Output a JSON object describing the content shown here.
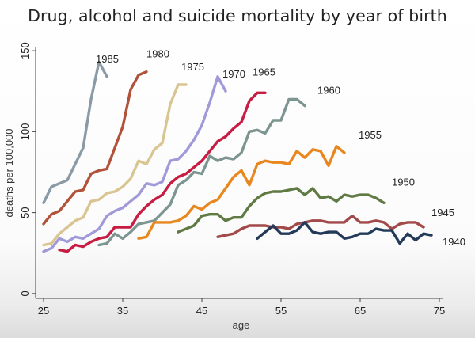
{
  "title": "Drug, alcohol and suicide mortality by year of birth",
  "chart_data": {
    "type": "line",
    "title": "Drug, alcohol and suicide mortality by year of birth",
    "xlabel": "age",
    "ylabel": "deaths per 100,000",
    "xlim": [
      24,
      75.5
    ],
    "ylim": [
      -3,
      152
    ],
    "xticks": [
      25,
      35,
      45,
      55,
      65,
      75
    ],
    "yticks": [
      0,
      50,
      100,
      150
    ],
    "grid": false,
    "legend": "none",
    "series": [
      {
        "name": "1985",
        "color": "#8a9ba6",
        "x": [
          25,
          26,
          27,
          28,
          29,
          30,
          31,
          32,
          33
        ],
        "y": [
          56,
          66,
          68,
          70,
          80,
          90,
          120,
          143,
          134
        ]
      },
      {
        "name": "1980",
        "color": "#b0533a",
        "x": [
          25,
          26,
          27,
          28,
          29,
          30,
          31,
          32,
          33,
          34,
          35,
          36,
          37,
          38
        ],
        "y": [
          43,
          49,
          51,
          57,
          63,
          64,
          74,
          76,
          77,
          90,
          103,
          126,
          135,
          137
        ]
      },
      {
        "name": "1975",
        "color": "#d9c591",
        "x": [
          25,
          26,
          27,
          28,
          29,
          30,
          31,
          32,
          33,
          34,
          35,
          36,
          37,
          38,
          39,
          40,
          41,
          42,
          43
        ],
        "y": [
          30,
          31,
          37,
          41,
          45,
          47,
          57,
          58,
          62,
          63,
          66,
          71,
          82,
          80,
          89,
          93,
          117,
          129,
          129
        ]
      },
      {
        "name": "1970",
        "color": "#a09ad9",
        "x": [
          25,
          26,
          27,
          28,
          29,
          30,
          31,
          32,
          33,
          34,
          35,
          36,
          37,
          38,
          39,
          40,
          41,
          42,
          43,
          44,
          45,
          46,
          47,
          48
        ],
        "y": [
          26,
          28,
          34,
          32,
          35,
          34,
          37,
          40,
          48,
          51,
          53,
          57,
          61,
          68,
          67,
          69,
          82,
          83,
          88,
          95,
          104,
          118,
          134,
          125
        ]
      },
      {
        "name": "1965",
        "color": "#c71d42",
        "x": [
          27,
          28,
          29,
          30,
          31,
          32,
          33,
          34,
          35,
          36,
          37,
          38,
          39,
          40,
          41,
          42,
          43,
          44,
          45,
          46,
          47,
          48,
          49,
          50,
          51,
          52,
          53
        ],
        "y": [
          27,
          26,
          30,
          29,
          32,
          34,
          35,
          41,
          41,
          41,
          49,
          54,
          58,
          61,
          68,
          72,
          74,
          78,
          82,
          88,
          94,
          97,
          102,
          106,
          119,
          124,
          124
        ]
      },
      {
        "name": "1960",
        "color": "#7d9590",
        "x": [
          32,
          33,
          34,
          35,
          36,
          37,
          38,
          39,
          40,
          41,
          42,
          43,
          44,
          45,
          46,
          47,
          48,
          49,
          50,
          51,
          52,
          53,
          54,
          55,
          56,
          57,
          58
        ],
        "y": [
          30,
          31,
          37,
          34,
          38,
          43,
          44,
          45,
          50,
          55,
          67,
          70,
          75,
          74,
          85,
          82,
          84,
          83,
          87,
          100,
          101,
          99,
          107,
          107,
          120,
          120,
          116
        ]
      },
      {
        "name": "1955",
        "color": "#e8871e",
        "x": [
          37,
          38,
          39,
          40,
          41,
          42,
          43,
          44,
          45,
          46,
          47,
          48,
          49,
          50,
          51,
          52,
          53,
          54,
          55,
          56,
          57,
          58,
          59,
          60,
          61,
          62,
          63
        ],
        "y": [
          34,
          35,
          44,
          44,
          44,
          45,
          48,
          54,
          52,
          56,
          58,
          65,
          72,
          76,
          67,
          80,
          82,
          81,
          81,
          80,
          88,
          84,
          89,
          88,
          79,
          91,
          87
        ]
      },
      {
        "name": "1950",
        "color": "#5f7a43",
        "x": [
          42,
          43,
          44,
          45,
          46,
          47,
          48,
          49,
          50,
          51,
          52,
          53,
          54,
          55,
          56,
          57,
          58,
          59,
          60,
          61,
          62,
          63,
          64,
          65,
          66,
          67,
          68
        ],
        "y": [
          38,
          40,
          42,
          48,
          49,
          49,
          45,
          47,
          47,
          54,
          59,
          62,
          63,
          63,
          64,
          65,
          61,
          65,
          59,
          60,
          57,
          61,
          60,
          61,
          61,
          59,
          56
        ]
      },
      {
        "name": "1945",
        "color": "#a24a4a",
        "x": [
          47,
          48,
          49,
          50,
          51,
          52,
          53,
          54,
          55,
          56,
          57,
          58,
          59,
          60,
          61,
          62,
          63,
          64,
          65,
          66,
          67,
          68,
          69,
          70,
          71,
          72,
          73
        ],
        "y": [
          35,
          36,
          37,
          40,
          42,
          42,
          42,
          41,
          41,
          40,
          43,
          44,
          45,
          45,
          44,
          44,
          44,
          48,
          44,
          44,
          45,
          44,
          40,
          43,
          44,
          44,
          41
        ]
      },
      {
        "name": "1940",
        "color": "#233a58",
        "x": [
          52,
          53,
          54,
          55,
          56,
          57,
          58,
          59,
          60,
          61,
          62,
          63,
          64,
          65,
          66,
          67,
          68,
          69,
          70,
          71,
          72,
          73,
          74
        ],
        "y": [
          34,
          38,
          42,
          37,
          37,
          39,
          44,
          38,
          37,
          38,
          38,
          34,
          35,
          37,
          37,
          40,
          39,
          39,
          31,
          37,
          33,
          37,
          36
        ]
      }
    ]
  }
}
